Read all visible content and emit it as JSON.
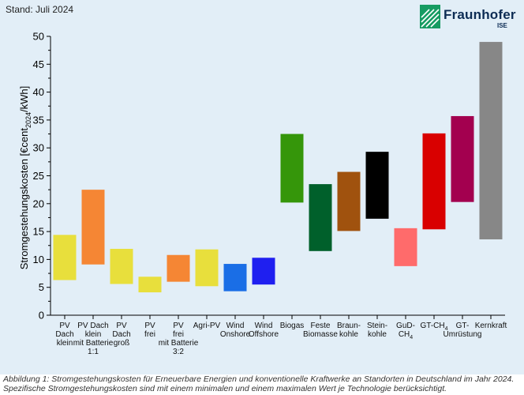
{
  "header": {
    "stand": "Stand: Juli 2024",
    "logo_text": "Fraunhofer",
    "logo_sub": "ISE"
  },
  "caption": {
    "line1": "Abbildung 1: Stromgestehungskosten für Erneuerbare Energien und konventionelle Kraftwerke an Standorten in Deutschland im Jahr 2024.",
    "line2": "Spezifische Stromgestehungskosten sind mit einem minimalen und einem maximalen Wert je Technologie berücksichtigt."
  },
  "chart_data": {
    "type": "bar",
    "title": "",
    "ylabel": "Stromgestehungskosten [€cent2024/kWh]",
    "ylabel_parts": {
      "pre": "Stromgestehungskosten [€cent",
      "sub": "2024",
      "post": "/kWh]"
    },
    "xlabel": "",
    "ylim": [
      0,
      50
    ],
    "yticks": [
      "0",
      "5",
      "10",
      "15",
      "20",
      "25",
      "30",
      "35",
      "40",
      "45",
      "50"
    ],
    "grid": false,
    "series": [
      {
        "category": "PV Dach klein",
        "label_lines": [
          "PV",
          "Dach",
          "klein"
        ],
        "min": 6.3,
        "max": 14.4,
        "color": "#e8df3c"
      },
      {
        "category": "PV Dach klein mit Batterie 1:1",
        "label_lines": [
          "PV Dach",
          "klein",
          "mit Batterie",
          "1:1"
        ],
        "min": 9.1,
        "max": 22.5,
        "color": "#f58634"
      },
      {
        "category": "PV Dach groß",
        "label_lines": [
          "PV",
          "Dach",
          "groß"
        ],
        "min": 5.6,
        "max": 11.9,
        "color": "#e8df3c"
      },
      {
        "category": "PV frei",
        "label_lines": [
          "PV",
          "frei"
        ],
        "min": 4.1,
        "max": 6.9,
        "color": "#e8df3c"
      },
      {
        "category": "PV frei mit Batterie 3:2",
        "label_lines": [
          "PV",
          "frei",
          "mit Batterie",
          "3:2"
        ],
        "min": 6.0,
        "max": 10.8,
        "color": "#f58634"
      },
      {
        "category": "Agri-PV",
        "label_lines": [
          "Agri-PV"
        ],
        "min": 5.2,
        "max": 11.8,
        "color": "#e8df3c"
      },
      {
        "category": "Wind Onshore",
        "label_lines": [
          "Wind",
          "Onshore"
        ],
        "min": 4.3,
        "max": 9.2,
        "color": "#1a6ee6"
      },
      {
        "category": "Wind Offshore",
        "label_lines": [
          "Wind",
          "Offshore"
        ],
        "min": 5.5,
        "max": 10.3,
        "color": "#1f1ff0"
      },
      {
        "category": "Biogas",
        "label_lines": [
          "Biogas"
        ],
        "min": 20.2,
        "max": 32.5,
        "color": "#35960a"
      },
      {
        "category": "Feste Biomasse",
        "label_lines": [
          "Feste",
          "Biomasse"
        ],
        "min": 11.5,
        "max": 23.5,
        "color": "#00602b"
      },
      {
        "category": "Braunkohle",
        "label_lines": [
          "Braun-",
          "kohle"
        ],
        "min": 15.1,
        "max": 25.7,
        "color": "#a0520e"
      },
      {
        "category": "Steinkohle",
        "label_lines": [
          "Stein-",
          "kohle"
        ],
        "min": 17.3,
        "max": 29.3,
        "color": "#000000"
      },
      {
        "category": "GuD-CH4",
        "label_lines": [
          "GuD-",
          "CH4"
        ],
        "min": 8.8,
        "max": 15.6,
        "color": "#ff6b6b"
      },
      {
        "category": "GT-CH4",
        "label_lines": [
          "GT-CH4"
        ],
        "min": 15.4,
        "max": 32.6,
        "color": "#d90000"
      },
      {
        "category": "GT-Umrüstung",
        "label_lines": [
          "GT-",
          "Umrüstung"
        ],
        "min": 20.3,
        "max": 35.7,
        "color": "#a3004f"
      },
      {
        "category": "Kernkraft",
        "label_lines": [
          "Kernkraft"
        ],
        "min": 13.6,
        "max": 49.0,
        "color": "#878787"
      }
    ]
  }
}
